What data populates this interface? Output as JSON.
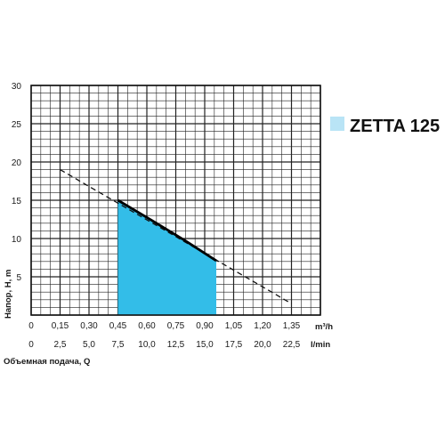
{
  "chart_data": {
    "type": "area",
    "title": "",
    "ylabel": "Напор, Н, m",
    "xlabel": "Объемная подача, Q",
    "ylim": [
      0,
      30
    ],
    "y_ticks": [
      "5",
      "10",
      "15",
      "20",
      "25",
      "30"
    ],
    "x_unit_top": "m³/h",
    "x_unit_bottom": "l/min",
    "x_ticks_top": [
      "0",
      "0,15",
      "0,30",
      "0,45",
      "0,60",
      "0,75",
      "0,90",
      "1,05",
      "1,20",
      "1,35"
    ],
    "x_ticks_bottom": [
      "0",
      "2,5",
      "5,0",
      "7,5",
      "10,0",
      "12,5",
      "15,0",
      "17,5",
      "20,0",
      "22,5"
    ],
    "xlim_m3h": [
      0,
      1.5
    ],
    "grid": true,
    "legend_position": "top-right",
    "series": [
      {
        "name": "ZETTA 125",
        "color": "#33bde8",
        "x_m3h": [
          0.45,
          0.63,
          0.8,
          0.96
        ],
        "y": [
          15,
          12.3,
          9.7,
          7.1
        ],
        "working_range_m3h": [
          0.45,
          0.96
        ]
      }
    ],
    "full_curve": {
      "style": "dashed",
      "x_m3h": [
        0.15,
        1.35
      ],
      "y": [
        19,
        1.5
      ]
    }
  }
}
